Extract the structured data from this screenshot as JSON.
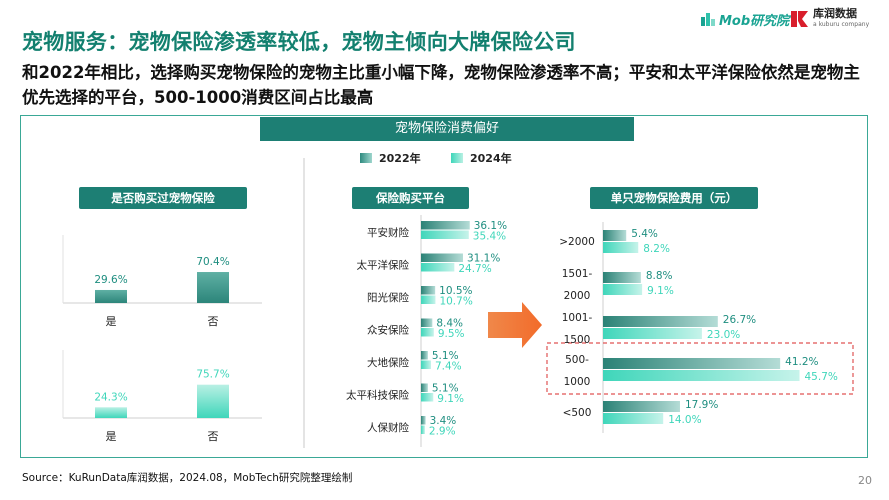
{
  "title": "宠物服务：宠物保险渗透率较低，宠物主倾向大牌保险公司",
  "subtitle": "和2022年相比，选择购买宠物保险的宠物主比重小幅下降，宠物保险渗透率不高；平安和太平洋保险依然是宠物主优先选择的平台，500-1000消费区间占比最高",
  "logos": {
    "mob": "Mob研究院",
    "kurun_name": "库润数据",
    "kurun_sub": "a kuburu company"
  },
  "main_header": "宠物保险消费偏好",
  "legend": {
    "y2022": "2022年",
    "y2024": "2024年"
  },
  "colors": {
    "accent": "#1d7f74",
    "c2022": "#2e8a7f",
    "c2024": "#3fd6ba",
    "label2022": "#1f8e80",
    "label2024": "#3fd6ba"
  },
  "source": "Source：KuRunData库润数据，2024.08，MobTech研究院整理绘制",
  "page_number": "20",
  "chart_data": [
    {
      "type": "bar",
      "title": "是否购买过宠物保险",
      "categories": [
        "是",
        "否"
      ],
      "series": [
        {
          "name": "2022年",
          "values": [
            29.6,
            70.4
          ],
          "labels": [
            "29.6%",
            "70.4%"
          ]
        },
        {
          "name": "2024年",
          "values": [
            24.3,
            75.7
          ],
          "labels": [
            "24.3%",
            "75.7%"
          ]
        }
      ]
    },
    {
      "type": "bar",
      "title": "保险购买平台",
      "orientation": "horizontal",
      "categories": [
        "平安财险",
        "太平洋保险",
        "阳光保险",
        "众安保险",
        "大地保险",
        "太平科技保险",
        "人保财险"
      ],
      "series": [
        {
          "name": "2022年",
          "values": [
            36.1,
            31.1,
            10.5,
            8.4,
            5.1,
            5.1,
            3.4
          ],
          "labels": [
            "36.1%",
            "31.1%",
            "10.5%",
            "8.4%",
            "5.1%",
            "5.1%",
            "3.4%"
          ]
        },
        {
          "name": "2024年",
          "values": [
            35.4,
            24.7,
            10.7,
            9.5,
            7.4,
            9.1,
            2.9
          ],
          "labels": [
            "35.4%",
            "24.7%",
            "10.7%",
            "9.5%",
            "7.4%",
            "9.1%",
            "2.9%"
          ]
        }
      ]
    },
    {
      "type": "bar",
      "title": "单只宠物保险费用（元）",
      "orientation": "horizontal",
      "categories": [
        [
          ">2000"
        ],
        [
          "1501-",
          "2000"
        ],
        [
          "1001-",
          "1500"
        ],
        [
          "500-",
          "1000"
        ],
        [
          "<500"
        ]
      ],
      "highlight": "500-1000",
      "series": [
        {
          "name": "2022年",
          "values": [
            5.4,
            8.8,
            26.7,
            41.2,
            17.9
          ],
          "labels": [
            "5.4%",
            "8.8%",
            "26.7%",
            "41.2%",
            "17.9%"
          ]
        },
        {
          "name": "2024年",
          "values": [
            8.2,
            9.1,
            23.0,
            45.7,
            14.0
          ],
          "labels": [
            "8.2%",
            "9.1%",
            "23.0%",
            "45.7%",
            "14.0%"
          ]
        }
      ]
    }
  ]
}
